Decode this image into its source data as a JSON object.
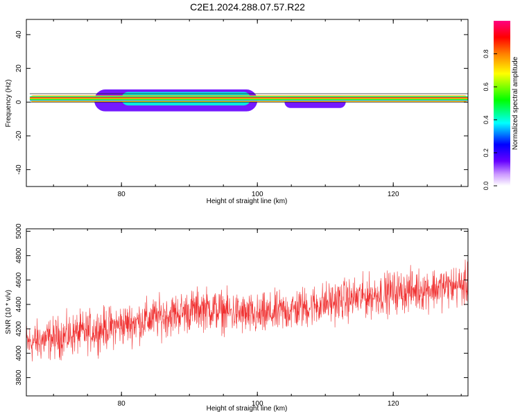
{
  "title": "C2E1.2024.288.07.57.R22",
  "chart_data": [
    {
      "type": "heatmap",
      "xlabel": "Height of straight line (km)",
      "ylabel": "Frequency (Hz)",
      "xlim": [
        66,
        131
      ],
      "ylim": [
        -50,
        49
      ],
      "x_ticks": [
        80,
        100,
        120
      ],
      "y_ticks": [
        -40,
        -20,
        0,
        20,
        40
      ],
      "colorbar": {
        "label": "Normalized spectral amplitude",
        "range": [
          0.0,
          1.0
        ],
        "ticks": [
          0.0,
          0.2,
          0.4,
          0.6,
          0.8
        ],
        "colormap": [
          "#ffffff",
          "#cc99ff",
          "#6600ff",
          "#0000ff",
          "#00ffff",
          "#00ff00",
          "#ffff00",
          "#ff8000",
          "#ff0000",
          "#ff0080"
        ]
      },
      "bands": [
        {
          "x": [
            66.5,
            131
          ],
          "y_center": 2,
          "half_width": 0.9,
          "amplitude": 1.0
        },
        {
          "x": [
            66.5,
            131
          ],
          "y_center": 2,
          "half_width": 2.0,
          "amplitude": 0.75
        },
        {
          "x": [
            80,
            99
          ],
          "y_center": 2,
          "half_width": 4.0,
          "amplitude": 0.4
        },
        {
          "x": [
            76,
            100
          ],
          "y_center": 1,
          "half_width": 6.5,
          "amplitude": 0.15
        },
        {
          "x": [
            104,
            113
          ],
          "y_center": 0,
          "half_width": 3.5,
          "amplitude": 0.15
        }
      ]
    },
    {
      "type": "line",
      "xlabel": "Height of straight line (km)",
      "ylabel": "SNR (10 * v/v)",
      "xlim": [
        66,
        131
      ],
      "ylim": [
        3650,
        5020
      ],
      "x_ticks": [
        80,
        100,
        120
      ],
      "y_ticks": [
        3800,
        4000,
        4200,
        4400,
        4600,
        4800,
        5000
      ],
      "color": "#f03030",
      "trend": {
        "x": [
          66,
          80,
          92,
          100,
          110,
          120,
          131
        ],
        "y": [
          4080,
          4230,
          4370,
          4300,
          4410,
          4500,
          4560
        ]
      },
      "noise_amplitude": 180
    }
  ]
}
